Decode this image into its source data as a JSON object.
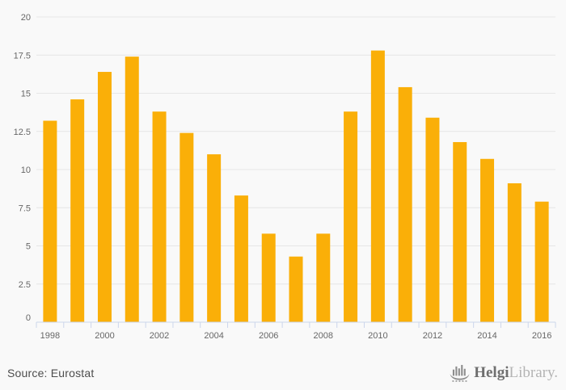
{
  "chart_data": {
    "type": "bar",
    "title": "",
    "xlabel": "",
    "ylabel": "",
    "categories": [
      "1998",
      "1999",
      "2000",
      "2001",
      "2002",
      "2003",
      "2004",
      "2005",
      "2006",
      "2007",
      "2008",
      "2009",
      "2010",
      "2011",
      "2012",
      "2013",
      "2014",
      "2015",
      "2016"
    ],
    "values": [
      13.2,
      14.6,
      16.4,
      17.4,
      13.8,
      12.4,
      11.0,
      8.3,
      5.8,
      4.3,
      5.8,
      13.8,
      17.8,
      15.4,
      13.4,
      11.8,
      10.7,
      9.1,
      7.9
    ],
    "ylim": [
      0,
      20
    ],
    "ytick_interval": 2.5,
    "ytick_labels": [
      "0",
      "2.5",
      "5",
      "7.5",
      "10",
      "12.5",
      "15",
      "17.5",
      "20"
    ],
    "xtick_labels_shown": [
      "1998",
      "2000",
      "2002",
      "2004",
      "2006",
      "2008",
      "2010",
      "2012",
      "2014",
      "2016"
    ],
    "x_label_every": 2,
    "grid": true,
    "legend": "none",
    "bar_color": "#faaf08",
    "gridline_color": "#e6e6e6",
    "axis_line_color": "#ccd6eb",
    "label_color": "#666666",
    "background_color": "#f9f9f9"
  },
  "footer": {
    "source": "Source: Eurostat",
    "logo": {
      "icon": "viking-ship-bar-chart-icon",
      "brand_bold": "Helgi",
      "brand_light": "Library."
    }
  }
}
